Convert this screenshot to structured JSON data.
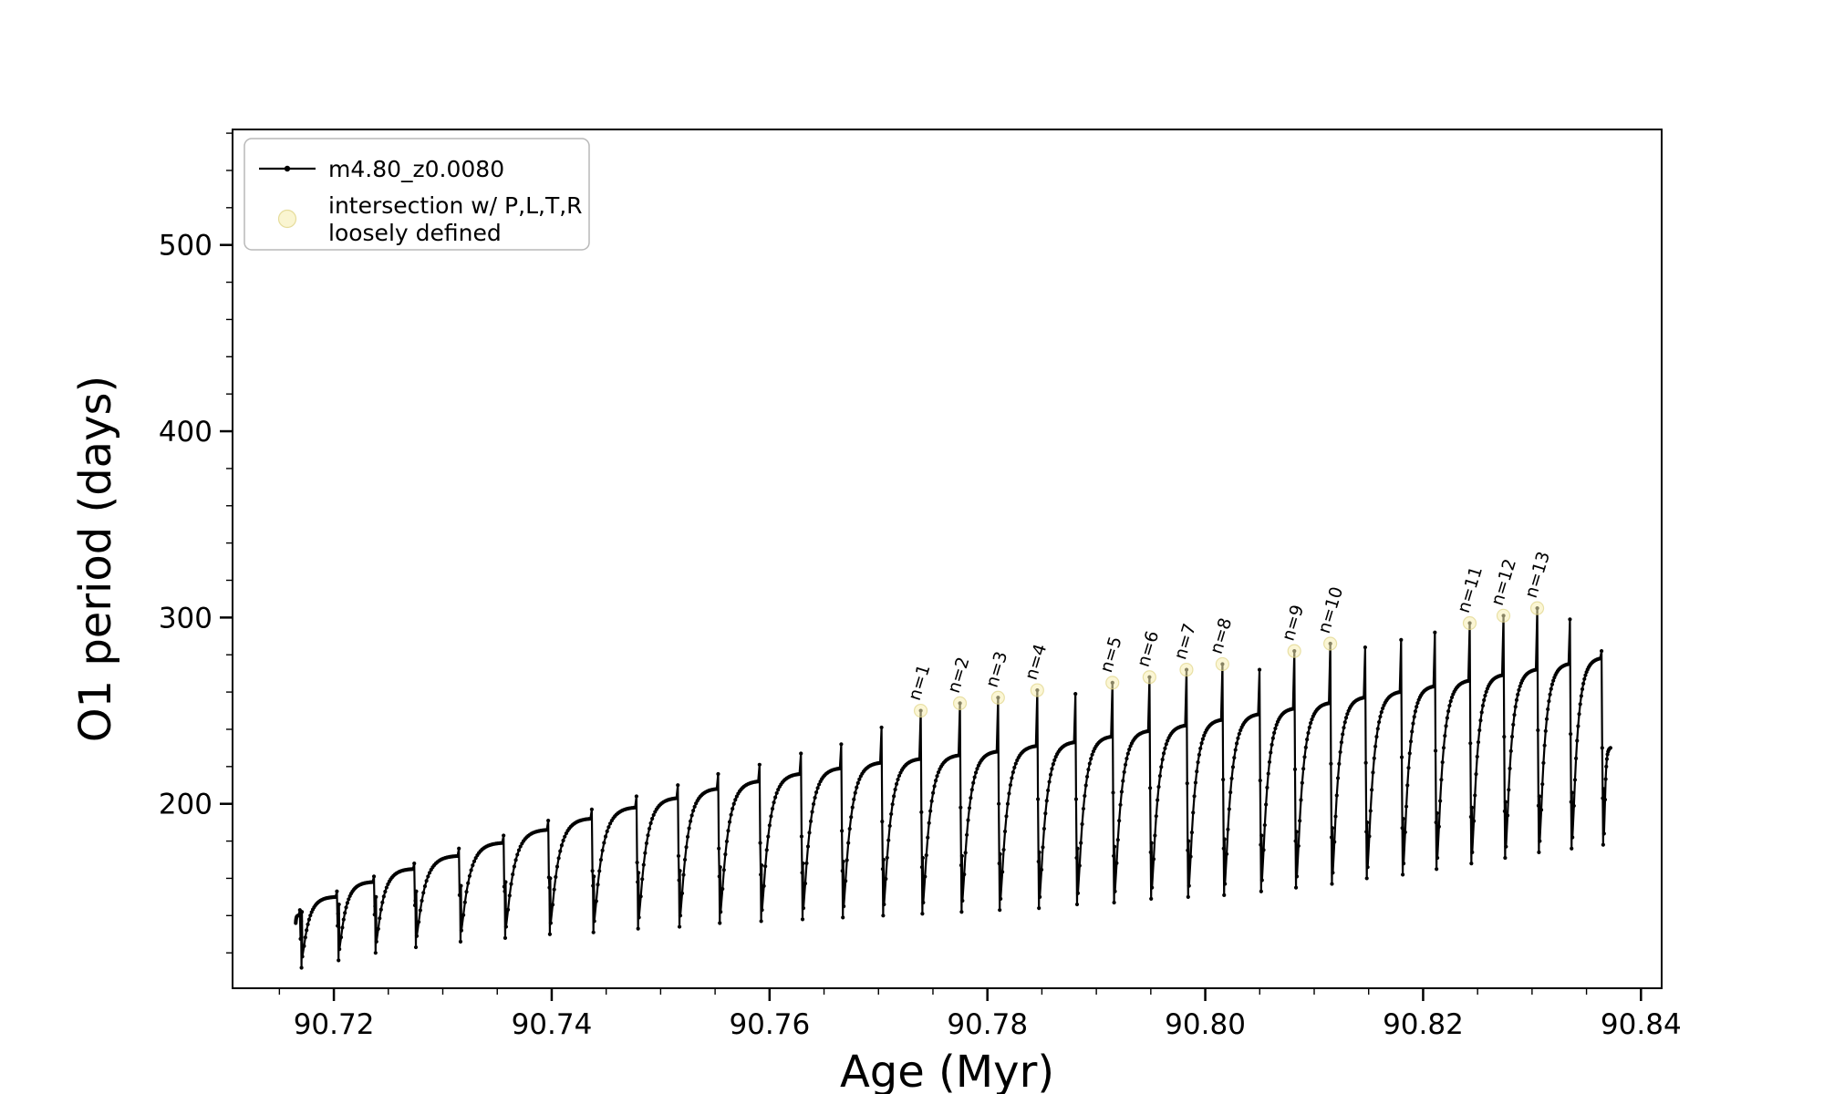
{
  "figure": {
    "background": "#ffffff",
    "line_color": "#000000",
    "spine_color": "#000000",
    "intersection_fill": "#f7efb2",
    "intersection_edge": "#e0d488"
  },
  "chart_data": {
    "type": "line",
    "title": "",
    "xlabel": "Age (Myr)",
    "ylabel": "O1 period (days)",
    "xlim": [
      90.7107,
      90.8419
    ],
    "ylim": [
      101,
      562
    ],
    "grid": false,
    "x_major_ticks": [
      90.72,
      90.74,
      90.76,
      90.78,
      90.8,
      90.82,
      90.84
    ],
    "x_tick_labels": [
      "90.72",
      "90.74",
      "90.76",
      "90.78",
      "90.80",
      "90.82",
      "90.84"
    ],
    "x_minor_step": 0.005,
    "y_major_ticks": [
      200,
      300,
      400,
      500
    ],
    "y_tick_labels": [
      "200",
      "300",
      "400",
      "500"
    ],
    "y_minor_step": 20,
    "legend": {
      "position": "upper left",
      "entries": [
        {
          "label": "m4.80_z0.0080",
          "marker": "line-dot",
          "color": "#000000"
        },
        {
          "label_line1": "intersection w/ P,L,T,R",
          "label_line2": "loosely defined",
          "marker": "circle",
          "color": "#f7efb2"
        }
      ]
    },
    "series": [
      {
        "name": "m4.80_z0.0080",
        "color": "#000000",
        "style": "line+markers",
        "start": {
          "x": 90.7165,
          "y": 136
        },
        "end": {
          "x": 90.8372,
          "y": 230
        },
        "cycles_schema": [
          "dip_age_Myr",
          "plateau_days",
          "min_days",
          "spike_top_days",
          "label"
        ],
        "cycles": [
          [
            90.717,
            140,
            112,
            143,
            ""
          ],
          [
            90.7204,
            150,
            116,
            153,
            ""
          ],
          [
            90.7238,
            158,
            120,
            161,
            ""
          ],
          [
            90.7275,
            165,
            123,
            168,
            ""
          ],
          [
            90.7316,
            172,
            126,
            176,
            ""
          ],
          [
            90.7357,
            179,
            128,
            183,
            ""
          ],
          [
            90.7398,
            186,
            130,
            191,
            ""
          ],
          [
            90.7438,
            192,
            131,
            197,
            ""
          ],
          [
            90.7479,
            198,
            133,
            204,
            ""
          ],
          [
            90.7517,
            203,
            134,
            210,
            ""
          ],
          [
            90.7554,
            208,
            136,
            216,
            ""
          ],
          [
            90.7592,
            212,
            137,
            221,
            ""
          ],
          [
            90.763,
            216,
            138,
            227,
            ""
          ],
          [
            90.7667,
            219,
            139,
            232,
            ""
          ],
          [
            90.7704,
            222,
            140,
            241,
            ""
          ],
          [
            90.774,
            224,
            141,
            250,
            "n=1"
          ],
          [
            90.7776,
            226,
            142,
            254,
            "n=2"
          ],
          [
            90.7811,
            228,
            143,
            257,
            "n=3"
          ],
          [
            90.7847,
            231,
            144,
            261,
            "n=4"
          ],
          [
            90.7882,
            233,
            146,
            259,
            ""
          ],
          [
            90.7916,
            236,
            147,
            265,
            "n=5"
          ],
          [
            90.795,
            239,
            149,
            268,
            "n=6"
          ],
          [
            90.7984,
            242,
            150,
            272,
            "n=7"
          ],
          [
            90.8017,
            245,
            151,
            275,
            "n=8"
          ],
          [
            90.8051,
            248,
            153,
            272,
            ""
          ],
          [
            90.8083,
            251,
            155,
            282,
            "n=9"
          ],
          [
            90.8116,
            254,
            157,
            286,
            "n=10"
          ],
          [
            90.8148,
            257,
            160,
            284,
            ""
          ],
          [
            90.8181,
            260,
            162,
            288,
            ""
          ],
          [
            90.8212,
            263,
            165,
            292,
            ""
          ],
          [
            90.8244,
            266,
            168,
            297,
            "n=11"
          ],
          [
            90.8275,
            269,
            171,
            301,
            "n=12"
          ],
          [
            90.8306,
            272,
            174,
            305,
            "n=13"
          ],
          [
            90.8336,
            275,
            176,
            299,
            ""
          ],
          [
            90.8365,
            278,
            178,
            282,
            ""
          ]
        ]
      }
    ],
    "annotations": [
      {
        "label": "n=1",
        "x": 90.774,
        "y": 250
      },
      {
        "label": "n=2",
        "x": 90.7776,
        "y": 254
      },
      {
        "label": "n=3",
        "x": 90.7811,
        "y": 257
      },
      {
        "label": "n=4",
        "x": 90.7847,
        "y": 261
      },
      {
        "label": "n=5",
        "x": 90.7916,
        "y": 265
      },
      {
        "label": "n=6",
        "x": 90.795,
        "y": 268
      },
      {
        "label": "n=7",
        "x": 90.7984,
        "y": 272
      },
      {
        "label": "n=8",
        "x": 90.8017,
        "y": 275
      },
      {
        "label": "n=9",
        "x": 90.8083,
        "y": 282
      },
      {
        "label": "n=10",
        "x": 90.8116,
        "y": 286
      },
      {
        "label": "n=11",
        "x": 90.8244,
        "y": 297
      },
      {
        "label": "n=12",
        "x": 90.8275,
        "y": 301
      },
      {
        "label": "n=13",
        "x": 90.8306,
        "y": 305
      }
    ]
  }
}
